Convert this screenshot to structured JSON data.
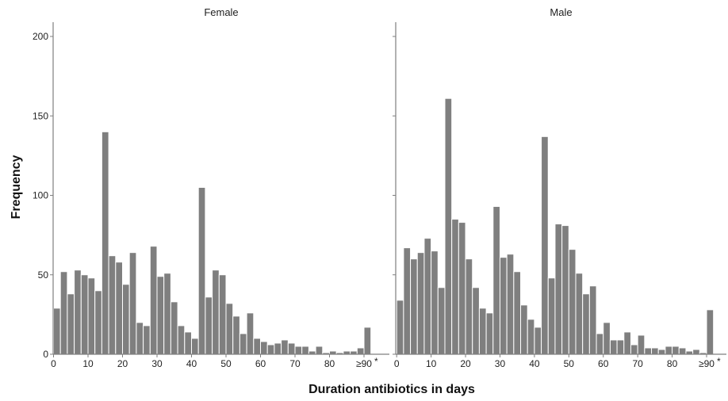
{
  "chart_data": {
    "type": "bar",
    "title": "",
    "xlabel": "Duration antibiotics in days",
    "ylabel": "Frequency",
    "ylim": [
      0,
      210
    ],
    "yticks": [
      "0",
      "50",
      "100",
      "150",
      "200"
    ],
    "xticks": [
      "0",
      "10",
      "20",
      "30",
      "40",
      "50",
      "60",
      "70",
      "80",
      "≥90"
    ],
    "x_overflow_marker": "*",
    "bin_width_days": 2,
    "grid": false,
    "colors": {
      "bar": "#7f7f7f",
      "bar_edge": "#ffffff",
      "axis": "#7f7f7f",
      "text": "#222222"
    },
    "panels": [
      {
        "name": "Female",
        "values": [
          29,
          52,
          38,
          53,
          50,
          48,
          40,
          140,
          62,
          58,
          44,
          64,
          20,
          18,
          68,
          49,
          51,
          33,
          18,
          14,
          10,
          105,
          36,
          53,
          50,
          32,
          24,
          13,
          26,
          10,
          8,
          6,
          7,
          9,
          7,
          5,
          5,
          2,
          5,
          1,
          2,
          1,
          2,
          2,
          4,
          17
        ]
      },
      {
        "name": "Male",
        "values": [
          34,
          67,
          60,
          64,
          73,
          65,
          42,
          161,
          85,
          83,
          60,
          42,
          29,
          26,
          93,
          61,
          63,
          52,
          31,
          22,
          17,
          137,
          48,
          82,
          81,
          66,
          51,
          38,
          43,
          13,
          20,
          9,
          9,
          14,
          6,
          12,
          4,
          4,
          3,
          5,
          5,
          4,
          2,
          3,
          1,
          28
        ]
      }
    ]
  }
}
